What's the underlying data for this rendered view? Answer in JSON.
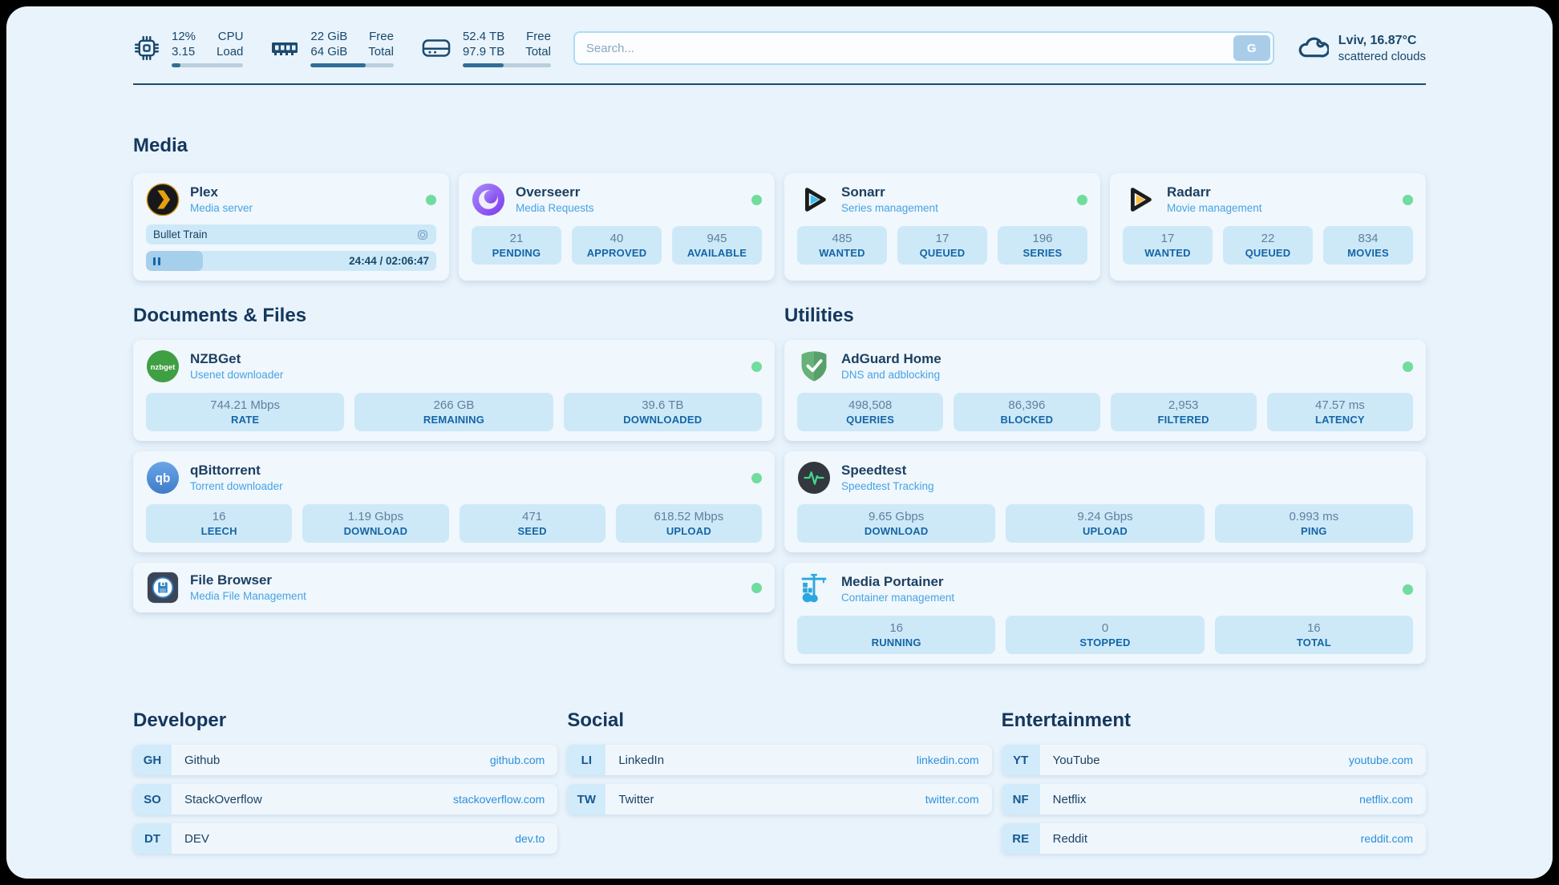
{
  "theme": {
    "page_bg": "#e9f3fb",
    "card_bg": "#f0f7fd",
    "pill_bg": "#cde9f8",
    "navy": "#17486b",
    "subtitle_blue": "#47a3e3",
    "label_blue": "#1565a5",
    "link_blue": "#2e8fd9",
    "status_green": "#70dc9e",
    "bar_fill": "#2f6e96",
    "plex_accent": "#e5a00d"
  },
  "topbar": {
    "cpu": {
      "value1": "12%",
      "value2": "3.15",
      "label1": "CPU",
      "label2": "Load",
      "progress": 12
    },
    "ram": {
      "value1": "22 GiB",
      "value2": "64 GiB",
      "label1": "Free",
      "label2": "Total",
      "progress": 66
    },
    "disk": {
      "value1": "52.4 TB",
      "value2": "97.9 TB",
      "label1": "Free",
      "label2": "Total",
      "progress": 46
    },
    "search": {
      "placeholder": "Search...",
      "button_label": "G"
    },
    "weather": {
      "location_temp": "Lviv, 16.87°C",
      "condition": "scattered clouds"
    }
  },
  "media": {
    "header": "Media",
    "plex": {
      "title": "Plex",
      "subtitle": "Media server",
      "status": "online",
      "now_playing": "Bullet Train",
      "time": "24:44 / 02:06:47",
      "progress": 19.5
    },
    "overseerr": {
      "title": "Overseerr",
      "subtitle": "Media Requests",
      "status": "online",
      "stats": [
        {
          "value": "21",
          "label": "PENDING"
        },
        {
          "value": "40",
          "label": "APPROVED"
        },
        {
          "value": "945",
          "label": "AVAILABLE"
        }
      ]
    },
    "sonarr": {
      "title": "Sonarr",
      "subtitle": "Series management",
      "status": "online",
      "stats": [
        {
          "value": "485",
          "label": "WANTED"
        },
        {
          "value": "17",
          "label": "QUEUED"
        },
        {
          "value": "196",
          "label": "SERIES"
        }
      ]
    },
    "radarr": {
      "title": "Radarr",
      "subtitle": "Movie management",
      "status": "online",
      "stats": [
        {
          "value": "17",
          "label": "WANTED"
        },
        {
          "value": "22",
          "label": "QUEUED"
        },
        {
          "value": "834",
          "label": "MOVIES"
        }
      ]
    }
  },
  "documents": {
    "header": "Documents & Files",
    "nzbget": {
      "title": "NZBGet",
      "subtitle": "Usenet downloader",
      "status": "online",
      "stats": [
        {
          "value": "744.21 Mbps",
          "label": "RATE"
        },
        {
          "value": "266 GB",
          "label": "REMAINING"
        },
        {
          "value": "39.6 TB",
          "label": "DOWNLOADED"
        }
      ]
    },
    "qbittorrent": {
      "title": "qBittorrent",
      "subtitle": "Torrent downloader",
      "status": "online",
      "stats": [
        {
          "value": "16",
          "label": "LEECH"
        },
        {
          "value": "1.19 Gbps",
          "label": "DOWNLOAD"
        },
        {
          "value": "471",
          "label": "SEED"
        },
        {
          "value": "618.52 Mbps",
          "label": "UPLOAD"
        }
      ]
    },
    "filebrowser": {
      "title": "File Browser",
      "subtitle": "Media File Management",
      "status": "online"
    }
  },
  "utilities": {
    "header": "Utilities",
    "adguard": {
      "title": "AdGuard Home",
      "subtitle": "DNS and adblocking",
      "status": "online",
      "stats": [
        {
          "value": "498,508",
          "label": "QUERIES"
        },
        {
          "value": "86,396",
          "label": "BLOCKED"
        },
        {
          "value": "2,953",
          "label": "FILTERED"
        },
        {
          "value": "47.57 ms",
          "label": "LATENCY"
        }
      ]
    },
    "speedtest": {
      "title": "Speedtest",
      "subtitle": "Speedtest Tracking",
      "stats": [
        {
          "value": "9.65 Gbps",
          "label": "DOWNLOAD"
        },
        {
          "value": "9.24 Gbps",
          "label": "UPLOAD"
        },
        {
          "value": "0.993 ms",
          "label": "PING"
        }
      ]
    },
    "portainer": {
      "title": "Media Portainer",
      "subtitle": "Container management",
      "status": "online",
      "stats": [
        {
          "value": "16",
          "label": "RUNNING"
        },
        {
          "value": "0",
          "label": "STOPPED"
        },
        {
          "value": "16",
          "label": "TOTAL"
        }
      ]
    }
  },
  "links": {
    "developer": {
      "header": "Developer",
      "items": [
        {
          "abbr": "GH",
          "name": "Github",
          "url": "github.com"
        },
        {
          "abbr": "SO",
          "name": "StackOverflow",
          "url": "stackoverflow.com"
        },
        {
          "abbr": "DT",
          "name": "DEV",
          "url": "dev.to"
        }
      ]
    },
    "social": {
      "header": "Social",
      "items": [
        {
          "abbr": "LI",
          "name": "LinkedIn",
          "url": "linkedin.com"
        },
        {
          "abbr": "TW",
          "name": "Twitter",
          "url": "twitter.com"
        }
      ]
    },
    "entertainment": {
      "header": "Entertainment",
      "items": [
        {
          "abbr": "YT",
          "name": "YouTube",
          "url": "youtube.com"
        },
        {
          "abbr": "NF",
          "name": "Netflix",
          "url": "netflix.com"
        },
        {
          "abbr": "RE",
          "name": "Reddit",
          "url": "reddit.com"
        }
      ]
    }
  }
}
